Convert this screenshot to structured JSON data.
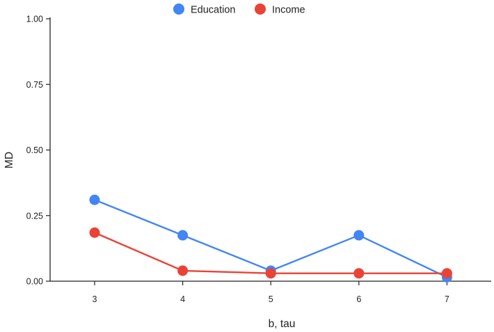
{
  "chart_data": {
    "type": "line",
    "title": "",
    "xlabel": "b, tau",
    "ylabel": "MD",
    "categories": [
      "3",
      "4",
      "5",
      "6",
      "7"
    ],
    "ylim": [
      0,
      1
    ],
    "yticks": [
      "0.00",
      "0.25",
      "0.50",
      "0.75",
      "1.00"
    ],
    "grid": false,
    "legend_position": "top",
    "series": [
      {
        "name": "Education",
        "color": "#4285f4",
        "values": [
          0.31,
          0.175,
          0.04,
          0.175,
          0.015
        ]
      },
      {
        "name": "Income",
        "color": "#ea4335",
        "values": [
          0.185,
          0.04,
          0.03,
          0.03,
          0.03
        ]
      }
    ]
  }
}
